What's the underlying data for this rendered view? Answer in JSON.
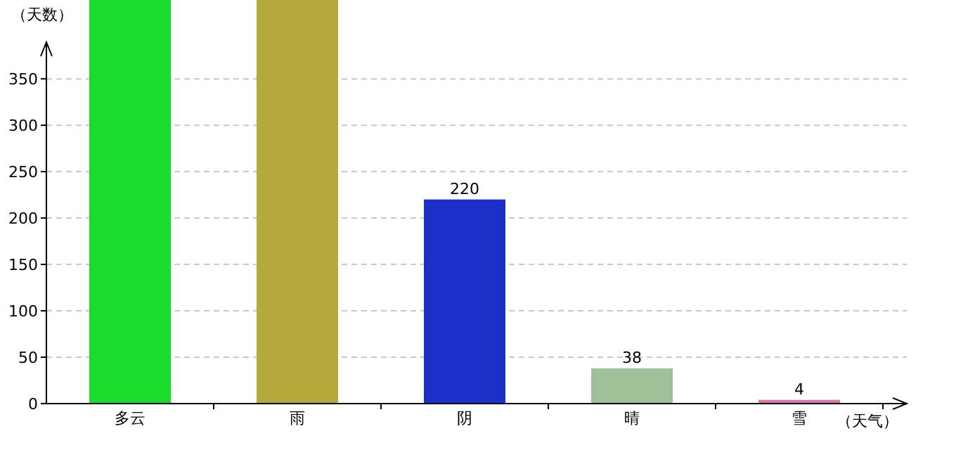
{
  "chart_data": {
    "type": "bar",
    "xlabel": "（天气）",
    "ylabel": "（天数）",
    "categories": [
      "多云",
      "雨",
      "阴",
      "晴",
      "雪"
    ],
    "values": [
      435,
      435,
      220,
      38,
      4
    ],
    "colors": [
      "#1adc2a",
      "#b5a83a",
      "#1a30c8",
      "#9fbf98",
      "#e070b0"
    ],
    "value_labels": [
      null,
      null,
      "220",
      "38",
      "4"
    ],
    "ylim": [
      0,
      435
    ],
    "yticks": [
      0,
      50,
      100,
      150,
      200,
      250,
      300,
      350
    ],
    "grid": "y"
  }
}
